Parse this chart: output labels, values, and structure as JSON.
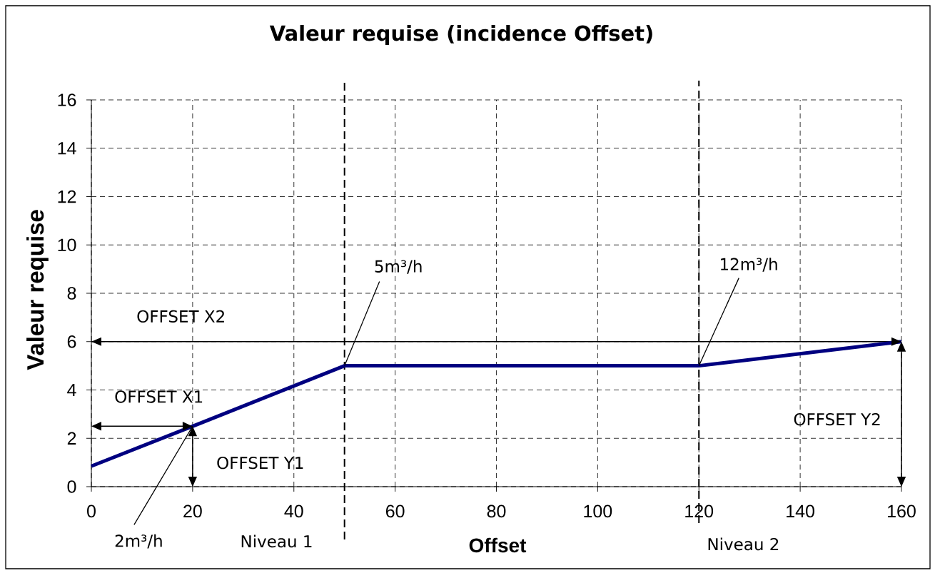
{
  "chart_data": {
    "type": "line",
    "title": "Valeur requise (incidence Offset)",
    "xlabel": "Offset",
    "ylabel": "Valeur requise",
    "x": [
      0,
      20,
      50,
      120,
      160
    ],
    "series": [
      {
        "color": "#000080",
        "values": [
          0.85,
          2.5,
          5,
          5,
          6
        ]
      }
    ],
    "xlim": [
      0,
      160
    ],
    "ylim": [
      0,
      16
    ],
    "xticks": [
      0,
      20,
      40,
      60,
      80,
      100,
      120,
      140,
      160
    ],
    "yticks": [
      0,
      2,
      4,
      6,
      8,
      10,
      12,
      14,
      16
    ],
    "grid": true,
    "ref_lines": [
      {
        "axis": "x",
        "value": 50,
        "label": "Niveau 1",
        "color": "#000000",
        "line_style": "dashed"
      },
      {
        "axis": "x",
        "value": 120,
        "label": "Niveau 2",
        "color": "#000000",
        "line_style": "dashed"
      },
      {
        "axis": "y",
        "value": 6,
        "label": "OFFSET X2",
        "color": "#000000",
        "line_style": "solid"
      }
    ],
    "annotations": [
      {
        "text": "5m³/h",
        "x": 50,
        "y": 5
      },
      {
        "text": "12m³/h",
        "x": 120,
        "y": 5
      },
      {
        "text": "2m³/h",
        "x": 20,
        "y": 2.5
      },
      {
        "text": "OFFSET X1",
        "x": 20,
        "y": 2.5
      },
      "OFFSET Y2",
      {
        "text": "OFFSET Y1",
        "x": 20,
        "y": 2.5
      }
    ]
  }
}
